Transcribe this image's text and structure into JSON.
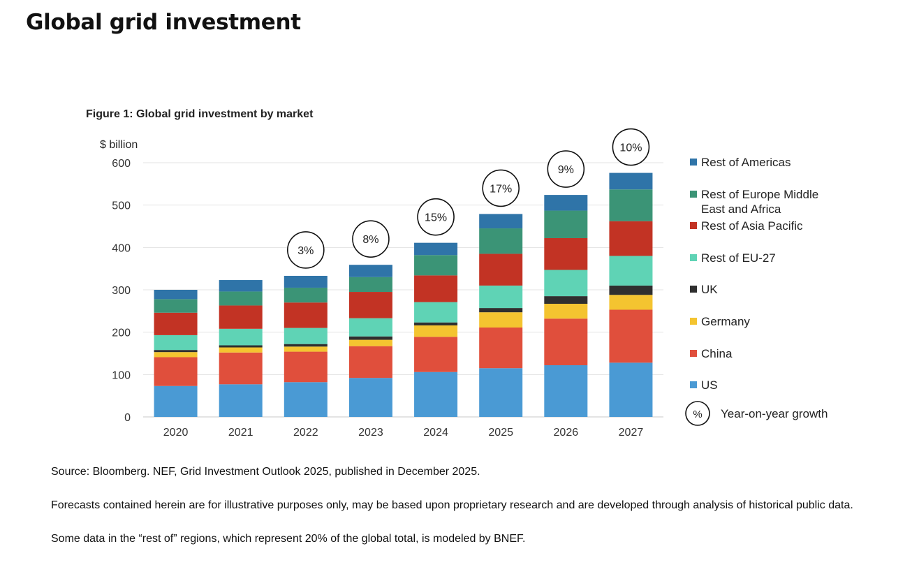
{
  "page": {
    "title": "Global grid investment"
  },
  "chart_data": {
    "type": "bar",
    "stacked": true,
    "title": "Figure 1:  Global grid investment by market",
    "ylabel": "$ billion",
    "xlabel": "",
    "ylim": [
      0,
      600
    ],
    "yticks": [
      0,
      100,
      200,
      300,
      400,
      500,
      600
    ],
    "grid": true,
    "legend_position": "right",
    "categories": [
      "2020",
      "2021",
      "2022",
      "2023",
      "2024",
      "2025",
      "2026",
      "2027"
    ],
    "series": [
      {
        "name": "US",
        "color": "#4a9ad4",
        "values": [
          73,
          77,
          82,
          92,
          106,
          115,
          122,
          128
        ]
      },
      {
        "name": "China",
        "color": "#e04f3c",
        "values": [
          68,
          75,
          72,
          75,
          83,
          96,
          110,
          125
        ]
      },
      {
        "name": "Germany",
        "color": "#f4c430",
        "values": [
          12,
          12,
          12,
          15,
          27,
          36,
          35,
          35
        ]
      },
      {
        "name": "UK",
        "color": "#2f2f2f",
        "values": [
          5,
          5,
          6,
          8,
          7,
          10,
          18,
          22
        ]
      },
      {
        "name": "Rest of EU-27",
        "color": "#5fd3b5",
        "values": [
          35,
          39,
          38,
          43,
          48,
          53,
          62,
          70
        ]
      },
      {
        "name": "Rest of Asia Pacific",
        "color": "#c23324",
        "values": [
          53,
          55,
          60,
          62,
          63,
          75,
          75,
          82
        ]
      },
      {
        "name": "Rest of Europe Middle East and Africa",
        "color": "#3b9476",
        "values": [
          32,
          33,
          35,
          35,
          48,
          60,
          65,
          75
        ]
      },
      {
        "name": "Rest of Americas",
        "color": "#2f74a8",
        "values": [
          22,
          27,
          28,
          29,
          29,
          34,
          37,
          39
        ]
      }
    ],
    "legend": [
      {
        "label": "Rest of Americas",
        "color": "#2f74a8"
      },
      {
        "label": "Rest of Europe Middle East and Africa",
        "color": "#3b9476"
      },
      {
        "label": "Rest of Asia Pacific",
        "color": "#c23324"
      },
      {
        "label": "Rest of EU-27",
        "color": "#5fd3b5"
      },
      {
        "label": "UK",
        "color": "#2f2f2f"
      },
      {
        "label": "Germany",
        "color": "#f4c430"
      },
      {
        "label": "China",
        "color": "#e04f3c"
      },
      {
        "label": "US",
        "color": "#4a9ad4"
      }
    ],
    "growth_annotations": [
      {
        "category": "2022",
        "label": "3%"
      },
      {
        "category": "2023",
        "label": "8%"
      },
      {
        "category": "2024",
        "label": "15%"
      },
      {
        "category": "2025",
        "label": "17%"
      },
      {
        "category": "2026",
        "label": "9%"
      },
      {
        "category": "2027",
        "label": "10%"
      }
    ],
    "growth_legend": {
      "symbol": "%",
      "label": "Year-on-year growth"
    }
  },
  "notes": {
    "source": "Source: Bloomberg. NEF, Grid Investment Outlook 2025, published in December 2025.",
    "forecast": "Forecasts contained herein are for illustrative purposes only, may be based upon proprietary research and are developed through analysis of historical public data.",
    "rest_of": "Some data in the “rest of” regions, which represent 20% of the global total, is modeled by BNEF."
  }
}
